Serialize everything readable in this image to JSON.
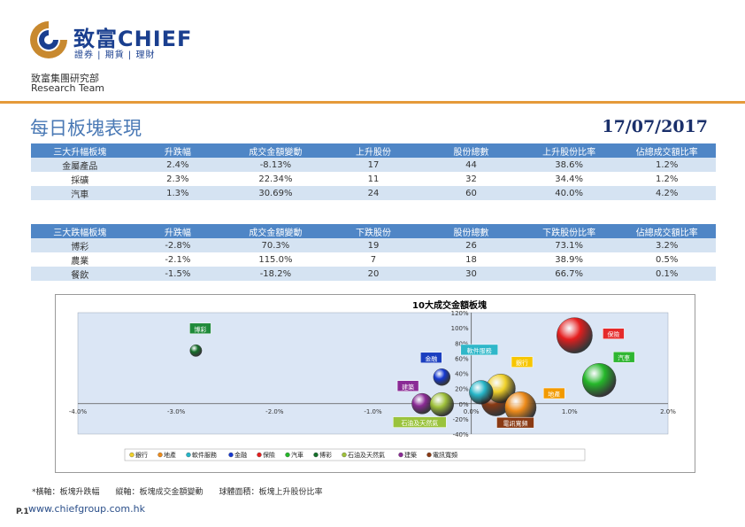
{
  "brand": {
    "name": "致富CHIEF",
    "subtitle": "證券 | 期貨 | 理財",
    "dept_cn": "致富集團研究部",
    "dept_en": "Research Team"
  },
  "page": {
    "title": "每日板塊表現",
    "date": "17/07/2017",
    "footnote": "*橫軸：板塊升跌幅　　縱軸：板塊成交金額變動　　球體面積：板塊上升股份比率",
    "page_no": "P.1",
    "url": "www.chiefgroup.com.hk"
  },
  "colors": {
    "header": "#4f86c6",
    "rule": "#e59a3a",
    "alt_row": "#d5e3f2"
  },
  "gainers": {
    "headers": [
      "三大升幅板塊",
      "升跌幅",
      "成交金額變動",
      "上升股份",
      "股份總數",
      "上升股份比率",
      "佔總成交額比率"
    ],
    "rows": [
      [
        "金屬產品",
        "2.4%",
        "-8.13%",
        "17",
        "44",
        "38.6%",
        "1.2%"
      ],
      [
        "採礦",
        "2.3%",
        "22.34%",
        "11",
        "32",
        "34.4%",
        "1.2%"
      ],
      [
        "汽車",
        "1.3%",
        "30.69%",
        "24",
        "60",
        "40.0%",
        "4.2%"
      ]
    ]
  },
  "losers": {
    "headers": [
      "三大跌幅板塊",
      "升跌幅",
      "成交金額變動",
      "下跌股份",
      "股份總數",
      "下跌股份比率",
      "佔總成交額比率"
    ],
    "rows": [
      [
        "博彩",
        "-2.8%",
        "70.3%",
        "19",
        "26",
        "73.1%",
        "3.2%"
      ],
      [
        "農業",
        "-2.1%",
        "115.0%",
        "7",
        "18",
        "38.9%",
        "0.5%"
      ],
      [
        "餐飲",
        "-1.5%",
        "-18.2%",
        "20",
        "30",
        "66.7%",
        "0.1%"
      ]
    ]
  },
  "chart_data": {
    "type": "scatter",
    "title": "10大成交金額板塊",
    "xlim": [
      -4,
      2
    ],
    "ylim": [
      -40,
      120
    ],
    "xticks": [
      "-4.0%",
      "-3.0%",
      "-2.0%",
      "-1.0%",
      "0.0%",
      "1.0%",
      "2.0%"
    ],
    "yticks": [
      "-40%",
      "-20%",
      "0%",
      "20%",
      "40%",
      "60%",
      "80%",
      "100%",
      "120%"
    ],
    "grid": false,
    "legend": "bottom",
    "series": [
      {
        "name": "銀行",
        "x": 0.3,
        "y": 20,
        "size": 0.3,
        "color": "#f0d12a",
        "label_bg": "#f7c600"
      },
      {
        "name": "地產",
        "x": 0.5,
        "y": -5,
        "size": 0.35,
        "color": "#ee8b1a",
        "label_bg": "#f29a00"
      },
      {
        "name": "軟件服務",
        "x": 0.1,
        "y": 15,
        "size": 0.2,
        "color": "#26b6c8",
        "label_bg": "#2fb7c9"
      },
      {
        "name": "金融",
        "x": -0.3,
        "y": 35,
        "size": 0.1,
        "color": "#1538d1",
        "label_bg": "#1b3fc0"
      },
      {
        "name": "保險",
        "x": 1.05,
        "y": 90,
        "size": 0.45,
        "color": "#e51e1e",
        "label_bg": "#e52a2a"
      },
      {
        "name": "汽車",
        "x": 1.3,
        "y": 31,
        "size": 0.4,
        "color": "#25b82a",
        "label_bg": "#2fb632"
      },
      {
        "name": "博彩",
        "x": -2.8,
        "y": 70,
        "size": 0.05,
        "color": "#15702a",
        "label_bg": "#1f8a3a"
      },
      {
        "name": "石油及天然氣",
        "x": -0.3,
        "y": -1,
        "size": 0.2,
        "color": "#9fc13a",
        "label_bg": "#9ac33c"
      },
      {
        "name": "建築",
        "x": -0.5,
        "y": 0,
        "size": 0.15,
        "color": "#8a2a95",
        "label_bg": "#8a2a95"
      },
      {
        "name": "電訊寬頻",
        "x": 0.25,
        "y": 3,
        "size": 0.3,
        "color": "#8a3a14",
        "label_bg": "#8a3a14"
      }
    ]
  }
}
